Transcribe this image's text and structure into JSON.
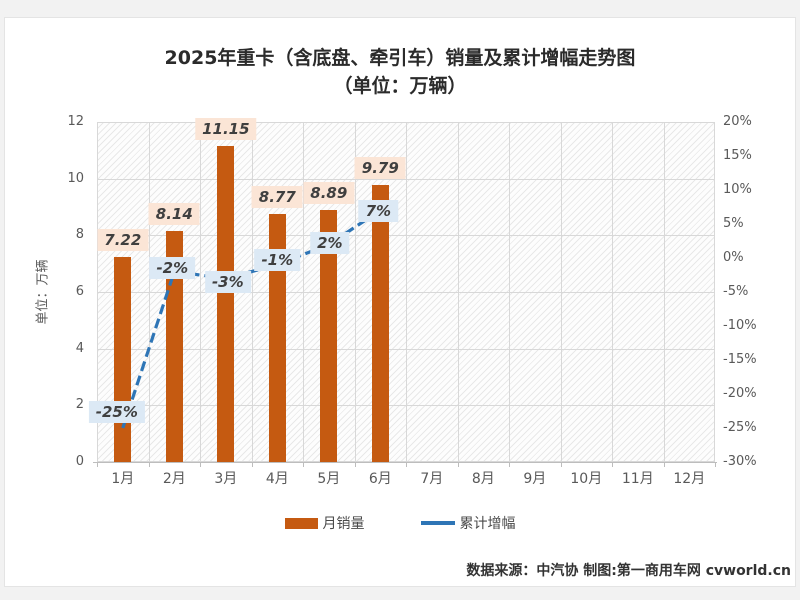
{
  "title": {
    "line1": "2025年重卡（含底盘、牵引车）销量及累计增幅走势图",
    "line2": "（单位：万辆）"
  },
  "chart_data": {
    "type": "combo-bar-line",
    "categories": [
      "1月",
      "2月",
      "3月",
      "4月",
      "5月",
      "6月",
      "7月",
      "8月",
      "9月",
      "10月",
      "11月",
      "12月"
    ],
    "series": [
      {
        "name": "月销量",
        "type": "bar",
        "axis": "left",
        "values": [
          7.22,
          8.14,
          11.15,
          8.77,
          8.89,
          9.79
        ],
        "labels": [
          "7.22",
          "8.14",
          "11.15",
          "8.77",
          "8.89",
          "9.79"
        ]
      },
      {
        "name": "累计增幅",
        "type": "line",
        "axis": "right",
        "values": [
          -25,
          -2,
          -3,
          -1,
          2,
          7
        ],
        "labels": [
          "-25%",
          "-2%",
          "-3%",
          "-1%",
          "2%",
          "7%"
        ]
      }
    ],
    "left_axis": {
      "title": "单位：万辆",
      "min": 0,
      "max": 12,
      "step": 2
    },
    "right_axis": {
      "min": -30,
      "max": 20,
      "step": 5,
      "suffix": "%"
    },
    "legend": [
      {
        "label": "月销量",
        "swatch": "bar"
      },
      {
        "label": "累计增幅",
        "swatch": "line"
      }
    ],
    "grid": "horizontal+vertical, hatched plot background",
    "legend_position": "bottom",
    "colors": {
      "bar": "#C55A11",
      "line": "#2E75B6",
      "bar_label_bg": "#FBE5D6",
      "line_label_bg": "#DCE9F5",
      "label_text": "#3F3F3F",
      "gridline": "#D8D8D8",
      "axis_text": "#595959"
    }
  },
  "footer": {
    "text": "数据来源：中汽协  制图:第一商用车网 cvworld.cn"
  }
}
